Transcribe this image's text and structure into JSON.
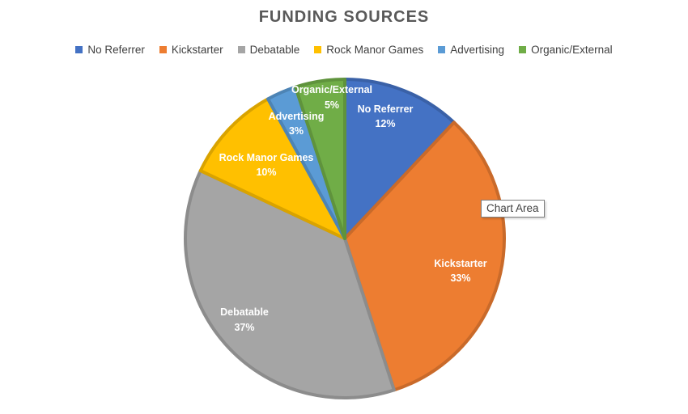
{
  "chart_data": {
    "type": "pie",
    "title": "FUNDING SOURCES",
    "legend_position": "top",
    "slices": [
      {
        "name": "No Referrer",
        "value": 12,
        "label": "12%",
        "color": "#4472C4"
      },
      {
        "name": "Kickstarter",
        "value": 33,
        "label": "33%",
        "color": "#ED7D31"
      },
      {
        "name": "Debatable",
        "value": 37,
        "label": "37%",
        "color": "#A5A5A5"
      },
      {
        "name": "Rock Manor Games",
        "value": 10,
        "label": "10%",
        "color": "#FFC000"
      },
      {
        "name": "Advertising",
        "value": 3,
        "label": "3%",
        "color": "#5B9BD5"
      },
      {
        "name": "Organic/External",
        "value": 5,
        "label": "5%",
        "color": "#70AD47"
      }
    ]
  },
  "tooltip": "Chart Area"
}
